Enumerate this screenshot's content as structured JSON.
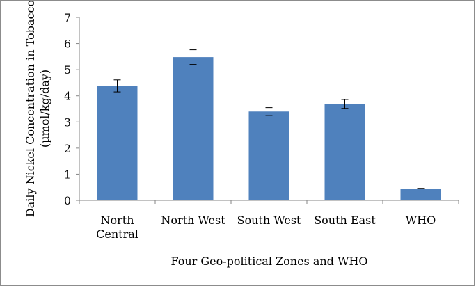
{
  "chart_data": {
    "type": "bar",
    "xlabel": "Four Geo-political Zones and WHO",
    "ylabel": "Daily Nickel Concentration in Tobacco (µmol/kg/day)",
    "ylabel_lines": [
      "Daily Nickel Concentration in Tobacco",
      "(µmol/kg/day)"
    ],
    "categories": [
      "North Central",
      "North West",
      "South West",
      "South East",
      "WHO"
    ],
    "category_lines": [
      [
        "North",
        "Central"
      ],
      [
        "North West"
      ],
      [
        "South West"
      ],
      [
        "South East"
      ],
      [
        "WHO"
      ]
    ],
    "values": [
      4.38,
      5.48,
      3.4,
      3.69,
      0.45
    ],
    "errors": [
      0.23,
      0.28,
      0.15,
      0.17,
      0.01
    ],
    "ylim": [
      0,
      7
    ],
    "yticks": [
      0,
      1,
      2,
      3,
      4,
      5,
      6,
      7
    ],
    "grid": false,
    "bar_color": "#4f81bd"
  }
}
